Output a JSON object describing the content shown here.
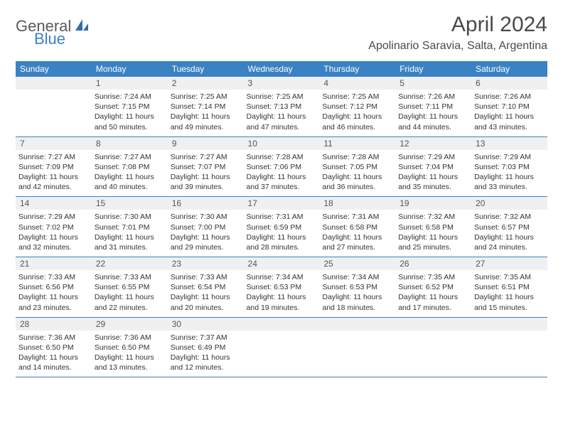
{
  "logo": {
    "part1": "General",
    "part2": "Blue"
  },
  "title": "April 2024",
  "location": "Apolinario Saravia, Salta, Argentina",
  "colors": {
    "header_bg": "#3b82c4",
    "header_text": "#ffffff",
    "daynum_bg": "#eef0f1",
    "rule": "#3b82c4",
    "body_text": "#333333",
    "title_text": "#4a4a4a"
  },
  "day_headers": [
    "Sunday",
    "Monday",
    "Tuesday",
    "Wednesday",
    "Thursday",
    "Friday",
    "Saturday"
  ],
  "weeks": [
    [
      {
        "num": "",
        "sunrise": "",
        "sunset": "",
        "daylight": ""
      },
      {
        "num": "1",
        "sunrise": "Sunrise: 7:24 AM",
        "sunset": "Sunset: 7:15 PM",
        "daylight": "Daylight: 11 hours and 50 minutes."
      },
      {
        "num": "2",
        "sunrise": "Sunrise: 7:25 AM",
        "sunset": "Sunset: 7:14 PM",
        "daylight": "Daylight: 11 hours and 49 minutes."
      },
      {
        "num": "3",
        "sunrise": "Sunrise: 7:25 AM",
        "sunset": "Sunset: 7:13 PM",
        "daylight": "Daylight: 11 hours and 47 minutes."
      },
      {
        "num": "4",
        "sunrise": "Sunrise: 7:25 AM",
        "sunset": "Sunset: 7:12 PM",
        "daylight": "Daylight: 11 hours and 46 minutes."
      },
      {
        "num": "5",
        "sunrise": "Sunrise: 7:26 AM",
        "sunset": "Sunset: 7:11 PM",
        "daylight": "Daylight: 11 hours and 44 minutes."
      },
      {
        "num": "6",
        "sunrise": "Sunrise: 7:26 AM",
        "sunset": "Sunset: 7:10 PM",
        "daylight": "Daylight: 11 hours and 43 minutes."
      }
    ],
    [
      {
        "num": "7",
        "sunrise": "Sunrise: 7:27 AM",
        "sunset": "Sunset: 7:09 PM",
        "daylight": "Daylight: 11 hours and 42 minutes."
      },
      {
        "num": "8",
        "sunrise": "Sunrise: 7:27 AM",
        "sunset": "Sunset: 7:08 PM",
        "daylight": "Daylight: 11 hours and 40 minutes."
      },
      {
        "num": "9",
        "sunrise": "Sunrise: 7:27 AM",
        "sunset": "Sunset: 7:07 PM",
        "daylight": "Daylight: 11 hours and 39 minutes."
      },
      {
        "num": "10",
        "sunrise": "Sunrise: 7:28 AM",
        "sunset": "Sunset: 7:06 PM",
        "daylight": "Daylight: 11 hours and 37 minutes."
      },
      {
        "num": "11",
        "sunrise": "Sunrise: 7:28 AM",
        "sunset": "Sunset: 7:05 PM",
        "daylight": "Daylight: 11 hours and 36 minutes."
      },
      {
        "num": "12",
        "sunrise": "Sunrise: 7:29 AM",
        "sunset": "Sunset: 7:04 PM",
        "daylight": "Daylight: 11 hours and 35 minutes."
      },
      {
        "num": "13",
        "sunrise": "Sunrise: 7:29 AM",
        "sunset": "Sunset: 7:03 PM",
        "daylight": "Daylight: 11 hours and 33 minutes."
      }
    ],
    [
      {
        "num": "14",
        "sunrise": "Sunrise: 7:29 AM",
        "sunset": "Sunset: 7:02 PM",
        "daylight": "Daylight: 11 hours and 32 minutes."
      },
      {
        "num": "15",
        "sunrise": "Sunrise: 7:30 AM",
        "sunset": "Sunset: 7:01 PM",
        "daylight": "Daylight: 11 hours and 31 minutes."
      },
      {
        "num": "16",
        "sunrise": "Sunrise: 7:30 AM",
        "sunset": "Sunset: 7:00 PM",
        "daylight": "Daylight: 11 hours and 29 minutes."
      },
      {
        "num": "17",
        "sunrise": "Sunrise: 7:31 AM",
        "sunset": "Sunset: 6:59 PM",
        "daylight": "Daylight: 11 hours and 28 minutes."
      },
      {
        "num": "18",
        "sunrise": "Sunrise: 7:31 AM",
        "sunset": "Sunset: 6:58 PM",
        "daylight": "Daylight: 11 hours and 27 minutes."
      },
      {
        "num": "19",
        "sunrise": "Sunrise: 7:32 AM",
        "sunset": "Sunset: 6:58 PM",
        "daylight": "Daylight: 11 hours and 25 minutes."
      },
      {
        "num": "20",
        "sunrise": "Sunrise: 7:32 AM",
        "sunset": "Sunset: 6:57 PM",
        "daylight": "Daylight: 11 hours and 24 minutes."
      }
    ],
    [
      {
        "num": "21",
        "sunrise": "Sunrise: 7:33 AM",
        "sunset": "Sunset: 6:56 PM",
        "daylight": "Daylight: 11 hours and 23 minutes."
      },
      {
        "num": "22",
        "sunrise": "Sunrise: 7:33 AM",
        "sunset": "Sunset: 6:55 PM",
        "daylight": "Daylight: 11 hours and 22 minutes."
      },
      {
        "num": "23",
        "sunrise": "Sunrise: 7:33 AM",
        "sunset": "Sunset: 6:54 PM",
        "daylight": "Daylight: 11 hours and 20 minutes."
      },
      {
        "num": "24",
        "sunrise": "Sunrise: 7:34 AM",
        "sunset": "Sunset: 6:53 PM",
        "daylight": "Daylight: 11 hours and 19 minutes."
      },
      {
        "num": "25",
        "sunrise": "Sunrise: 7:34 AM",
        "sunset": "Sunset: 6:53 PM",
        "daylight": "Daylight: 11 hours and 18 minutes."
      },
      {
        "num": "26",
        "sunrise": "Sunrise: 7:35 AM",
        "sunset": "Sunset: 6:52 PM",
        "daylight": "Daylight: 11 hours and 17 minutes."
      },
      {
        "num": "27",
        "sunrise": "Sunrise: 7:35 AM",
        "sunset": "Sunset: 6:51 PM",
        "daylight": "Daylight: 11 hours and 15 minutes."
      }
    ],
    [
      {
        "num": "28",
        "sunrise": "Sunrise: 7:36 AM",
        "sunset": "Sunset: 6:50 PM",
        "daylight": "Daylight: 11 hours and 14 minutes."
      },
      {
        "num": "29",
        "sunrise": "Sunrise: 7:36 AM",
        "sunset": "Sunset: 6:50 PM",
        "daylight": "Daylight: 11 hours and 13 minutes."
      },
      {
        "num": "30",
        "sunrise": "Sunrise: 7:37 AM",
        "sunset": "Sunset: 6:49 PM",
        "daylight": "Daylight: 11 hours and 12 minutes."
      },
      {
        "num": "",
        "sunrise": "",
        "sunset": "",
        "daylight": ""
      },
      {
        "num": "",
        "sunrise": "",
        "sunset": "",
        "daylight": ""
      },
      {
        "num": "",
        "sunrise": "",
        "sunset": "",
        "daylight": ""
      },
      {
        "num": "",
        "sunrise": "",
        "sunset": "",
        "daylight": ""
      }
    ]
  ]
}
